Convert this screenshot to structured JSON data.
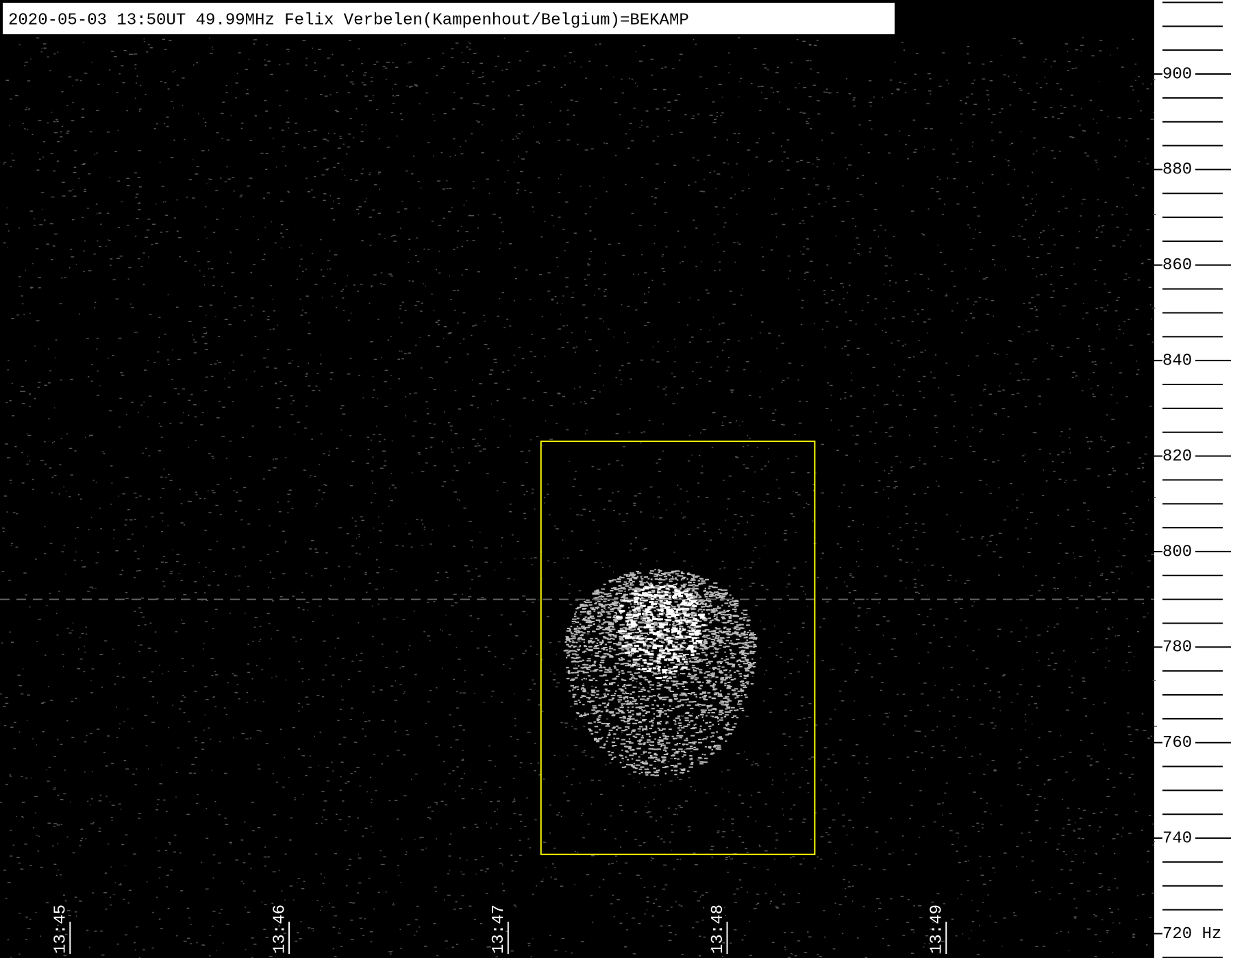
{
  "chart_data": {
    "type": "spectrogram",
    "title": "2020-05-03 13:50UT 49.99MHz Felix Verbelen(Kampenhout/Belgium)=BEKAMP",
    "xlim": [
      44.68,
      49.95
    ],
    "xticks": [
      {
        "value": 45,
        "label": "13:45"
      },
      {
        "value": 46,
        "label": "13:46"
      },
      {
        "value": 47,
        "label": "13:47"
      },
      {
        "value": 48,
        "label": "13:48"
      },
      {
        "value": 49,
        "label": "13:49"
      }
    ],
    "ylim": [
      714.9,
      915.5
    ],
    "yticks": [
      {
        "value": 720,
        "label": "720 Hz"
      },
      740,
      760,
      780,
      800,
      820,
      840,
      860,
      880,
      900
    ],
    "yminor": [
      715,
      725,
      730,
      735,
      745,
      750,
      755,
      765,
      770,
      775,
      785,
      790,
      795,
      805,
      810,
      815,
      825,
      830,
      835,
      845,
      850,
      855,
      865,
      870,
      875,
      885,
      890,
      895,
      905,
      910,
      915
    ],
    "highlight": {
      "x": [
        47.15,
        48.4
      ],
      "y": [
        736.6,
        823.1
      ],
      "color": "#ffff00"
    }
  }
}
